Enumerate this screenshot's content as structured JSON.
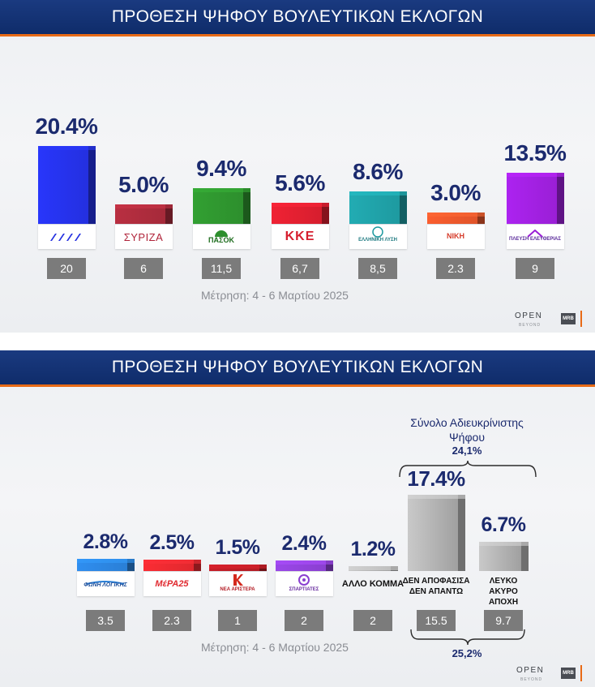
{
  "chart_data": [
    {
      "type": "bar",
      "title": "ΠΡΟΘΕΣΗ ΨΗΦΟΥ ΒΟΥΛΕΥΤΙΚΩΝ ΕΚΛΟΓΩΝ",
      "categories": [
        "ΝΔ",
        "ΣΥΡΙΖΑ",
        "ΠΑΣΟΚ",
        "ΚΚΕ",
        "ΕΛΛΗΝΙΚΗ ΛΥΣΗ",
        "ΝΙΚΗ",
        "ΠΛΕΥΣΗ ΕΛΕΥΘΕΡΙΑΣ"
      ],
      "values": [
        20.4,
        5.0,
        9.4,
        5.6,
        8.6,
        3.0,
        13.5
      ],
      "value_labels": [
        "20.4%",
        "5.0%",
        "9.4%",
        "5.6%",
        "8.6%",
        "3.0%",
        "13.5%"
      ],
      "secondary_labels": [
        "20",
        "6",
        "11,5",
        "6,7",
        "8,5",
        "2.3",
        "9"
      ],
      "colors": [
        "#2430e0",
        "#a52a3a",
        "#2d8f2d",
        "#d61e2e",
        "#1e9aa0",
        "#e0542a",
        "#9a1fd6"
      ],
      "logo_texts": [
        "",
        "ΣΥΡΙΖΑ",
        "ΠΑΣΟΚ",
        "KKE",
        "ΕΛΛΗΝΙΚΗ ΛΥΣΗ",
        "ΝΙΚΗ",
        "ΠΛΕΥΣΗ ΕΛΕΥΘΕΡΙΑΣ"
      ],
      "note": "Μέτρηση: 4 - 6 Μαρτίου 2025",
      "grid": false
    },
    {
      "type": "bar",
      "title": "ΠΡΟΘΕΣΗ ΨΗΦΟΥ ΒΟΥΛΕΥΤΙΚΩΝ ΕΚΛΟΓΩΝ",
      "categories": [
        "ΦΩΝΗ ΛΟΓΙΚΗΣ",
        "ΜέΡΑ25",
        "ΝΕΑ ΑΡΙΣΤΕΡΑ",
        "ΣΠΑΡΤΙΑΤΕΣ",
        "ΑΛΛΟ ΚΟΜΜΑ",
        "ΔΕΝ ΑΠΟΦΑΣΙΣΑ ΔΕΝ ΑΠΑΝΤΩ",
        "ΛΕΥΚΟ ΑΚΥΡΟ ΑΠΟΧΗ"
      ],
      "values": [
        2.8,
        2.5,
        1.5,
        2.4,
        1.2,
        17.4,
        6.7
      ],
      "value_labels": [
        "2.8%",
        "2.5%",
        "1.5%",
        "2.4%",
        "1.2%",
        "17.4%",
        "6.7%"
      ],
      "secondary_labels": [
        "3.5",
        "2.3",
        "1",
        "2",
        "2",
        "15.5",
        "9.7"
      ],
      "colors": [
        "#2a7fd6",
        "#e0282e",
        "#b31c24",
        "#8a3fd0",
        "#8c8c8c",
        "#9a9a9a",
        "#9a9a9a"
      ],
      "logo_texts": [
        "ΦΩΝΗ ΛΟΓΙΚΗΣ",
        "ΜέΡΑ25",
        "ΝΕΑ ΑΡΙΣΤΕΡΑ",
        "ΣΠΑΡΤΙΑΤΕΣ"
      ],
      "category_labels": {
        "other": "ΑΛΛΟ ΚΟΜΜΑ",
        "undecided": "ΔΕΝ ΑΠΟΦΑΣΙΣΑ ΔΕΝ ΑΠΑΝΤΩ",
        "blank": "ΛΕΥΚΟ ΑΚΥΡΟ ΑΠΟΧΗ"
      },
      "annotations": {
        "heading": "Σύνολο Αδιευκρίνιστης Ψήφου",
        "top_total": "24,1%",
        "bottom_total": "25,2%"
      },
      "note": "Μέτρηση: 4 - 6 Μαρτίου 2025",
      "grid": false
    }
  ],
  "brand": {
    "name": "OPEN",
    "sub": "BEYOND",
    "mrb": "MRB"
  }
}
